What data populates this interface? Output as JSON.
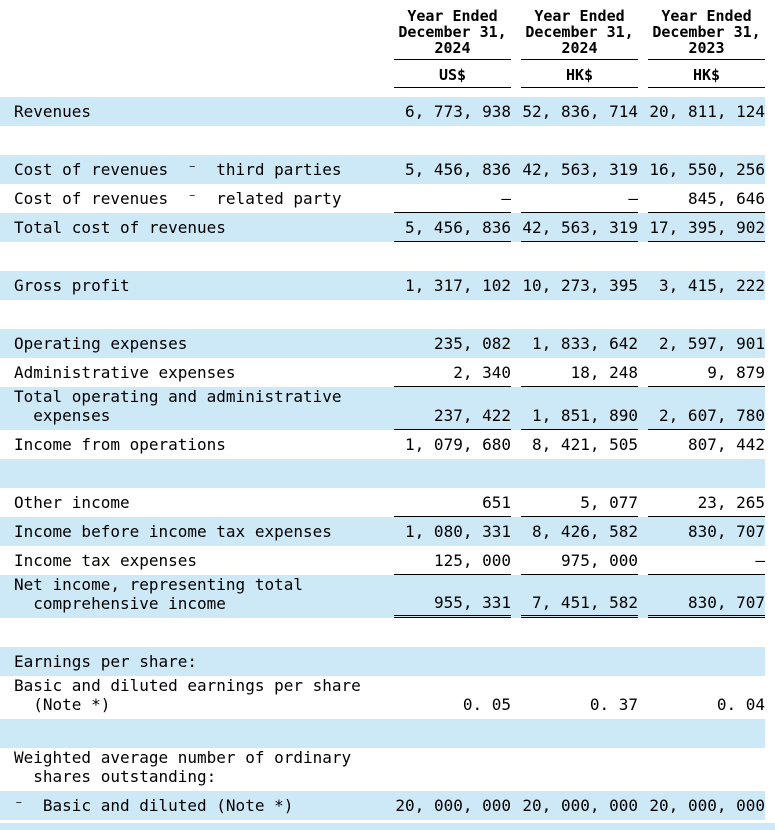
{
  "colors": {
    "row_highlight": "#cde9f8",
    "text": "#000000",
    "rule": "#000000"
  },
  "table": {
    "header": {
      "columns": [
        {
          "period_line1": "Year Ended",
          "period_line2": "December  31,",
          "period_line3": "2024",
          "currency": "US$"
        },
        {
          "period_line1": "Year Ended",
          "period_line2": "December  31,",
          "period_line3": "2024",
          "currency": "HK$"
        },
        {
          "period_line1": "Year Ended",
          "period_line2": "December  31,",
          "period_line3": "2023",
          "currency": "HK$"
        }
      ]
    },
    "rows": [
      {
        "label": "Revenues",
        "values": [
          "6, 773, 938",
          "52, 836, 714",
          "20, 811, 124"
        ],
        "bg": "blue",
        "rule": "none",
        "spacer": false
      },
      {
        "label": "",
        "values": [],
        "bg": "white",
        "rule": "none",
        "spacer": true
      },
      {
        "label": "Cost of revenues  ⁻  third parties",
        "values": [
          "5, 456, 836",
          "42, 563, 319",
          "16, 550, 256"
        ],
        "bg": "blue",
        "rule": "none",
        "spacer": false
      },
      {
        "label": "Cost of revenues  ⁻  related party",
        "values": [
          "—",
          "—",
          "845, 646"
        ],
        "bg": "white",
        "rule": "single",
        "spacer": false
      },
      {
        "label": "Total cost of revenues",
        "values": [
          "5, 456, 836",
          "42, 563, 319",
          "17, 395, 902"
        ],
        "bg": "blue",
        "rule": "single",
        "spacer": false
      },
      {
        "label": "",
        "values": [],
        "bg": "white",
        "rule": "none",
        "spacer": true
      },
      {
        "label": "Gross profit",
        "values": [
          "1, 317, 102",
          "10, 273, 395",
          "3, 415, 222"
        ],
        "bg": "blue",
        "rule": "none",
        "spacer": false
      },
      {
        "label": "",
        "values": [],
        "bg": "white",
        "rule": "none",
        "spacer": true
      },
      {
        "label": "Operating expenses",
        "values": [
          "235, 082",
          "1, 833, 642",
          "2, 597, 901"
        ],
        "bg": "blue",
        "rule": "none",
        "spacer": false
      },
      {
        "label": "Administrative expenses",
        "values": [
          "2, 340",
          "18, 248",
          "9, 879"
        ],
        "bg": "white",
        "rule": "single",
        "spacer": false
      },
      {
        "label": "Total operating and administrative\n  expenses",
        "values": [
          "237, 422",
          "1, 851, 890",
          "2, 607, 780"
        ],
        "bg": "blue",
        "rule": "single",
        "spacer": false
      },
      {
        "label": "Income from operations",
        "values": [
          "1, 079, 680",
          "8, 421, 505",
          "807, 442"
        ],
        "bg": "white",
        "rule": "none",
        "spacer": false
      },
      {
        "label": "",
        "values": [],
        "bg": "blue",
        "rule": "none",
        "spacer": true
      },
      {
        "label": "Other income",
        "values": [
          "651",
          "5, 077",
          "23, 265"
        ],
        "bg": "white",
        "rule": "single",
        "spacer": false
      },
      {
        "label": "Income before income tax expenses",
        "values": [
          "1, 080, 331",
          "8, 426, 582",
          "830, 707"
        ],
        "bg": "blue",
        "rule": "none",
        "spacer": false
      },
      {
        "label": "Income tax expenses",
        "values": [
          "125, 000",
          "975, 000",
          "—"
        ],
        "bg": "white",
        "rule": "single",
        "spacer": false
      },
      {
        "label": "Net income, representing total\n  comprehensive income",
        "values": [
          "955, 331",
          "7, 451, 582",
          "830, 707"
        ],
        "bg": "blue",
        "rule": "double",
        "spacer": false
      },
      {
        "label": "",
        "values": [],
        "bg": "white",
        "rule": "none",
        "spacer": true
      },
      {
        "label": "Earnings per share:",
        "values": [
          "",
          "",
          ""
        ],
        "bg": "blue",
        "rule": "none",
        "spacer": false
      },
      {
        "label": "Basic and diluted earnings per share\n  (Note *)",
        "values": [
          "0. 05",
          "0. 37",
          "0. 04"
        ],
        "bg": "white",
        "rule": "none",
        "spacer": false
      },
      {
        "label": "",
        "values": [],
        "bg": "blue",
        "rule": "none",
        "spacer": true
      },
      {
        "label": "Weighted average number of ordinary\n  shares outstanding:",
        "values": [
          "",
          "",
          ""
        ],
        "bg": "white",
        "rule": "none",
        "spacer": false
      },
      {
        "label": "⁻  Basic and diluted (Note *)",
        "values": [
          "20, 000, 000",
          "20, 000, 000",
          "20, 000, 000"
        ],
        "bg": "blue",
        "rule": "none",
        "spacer": false
      }
    ]
  }
}
